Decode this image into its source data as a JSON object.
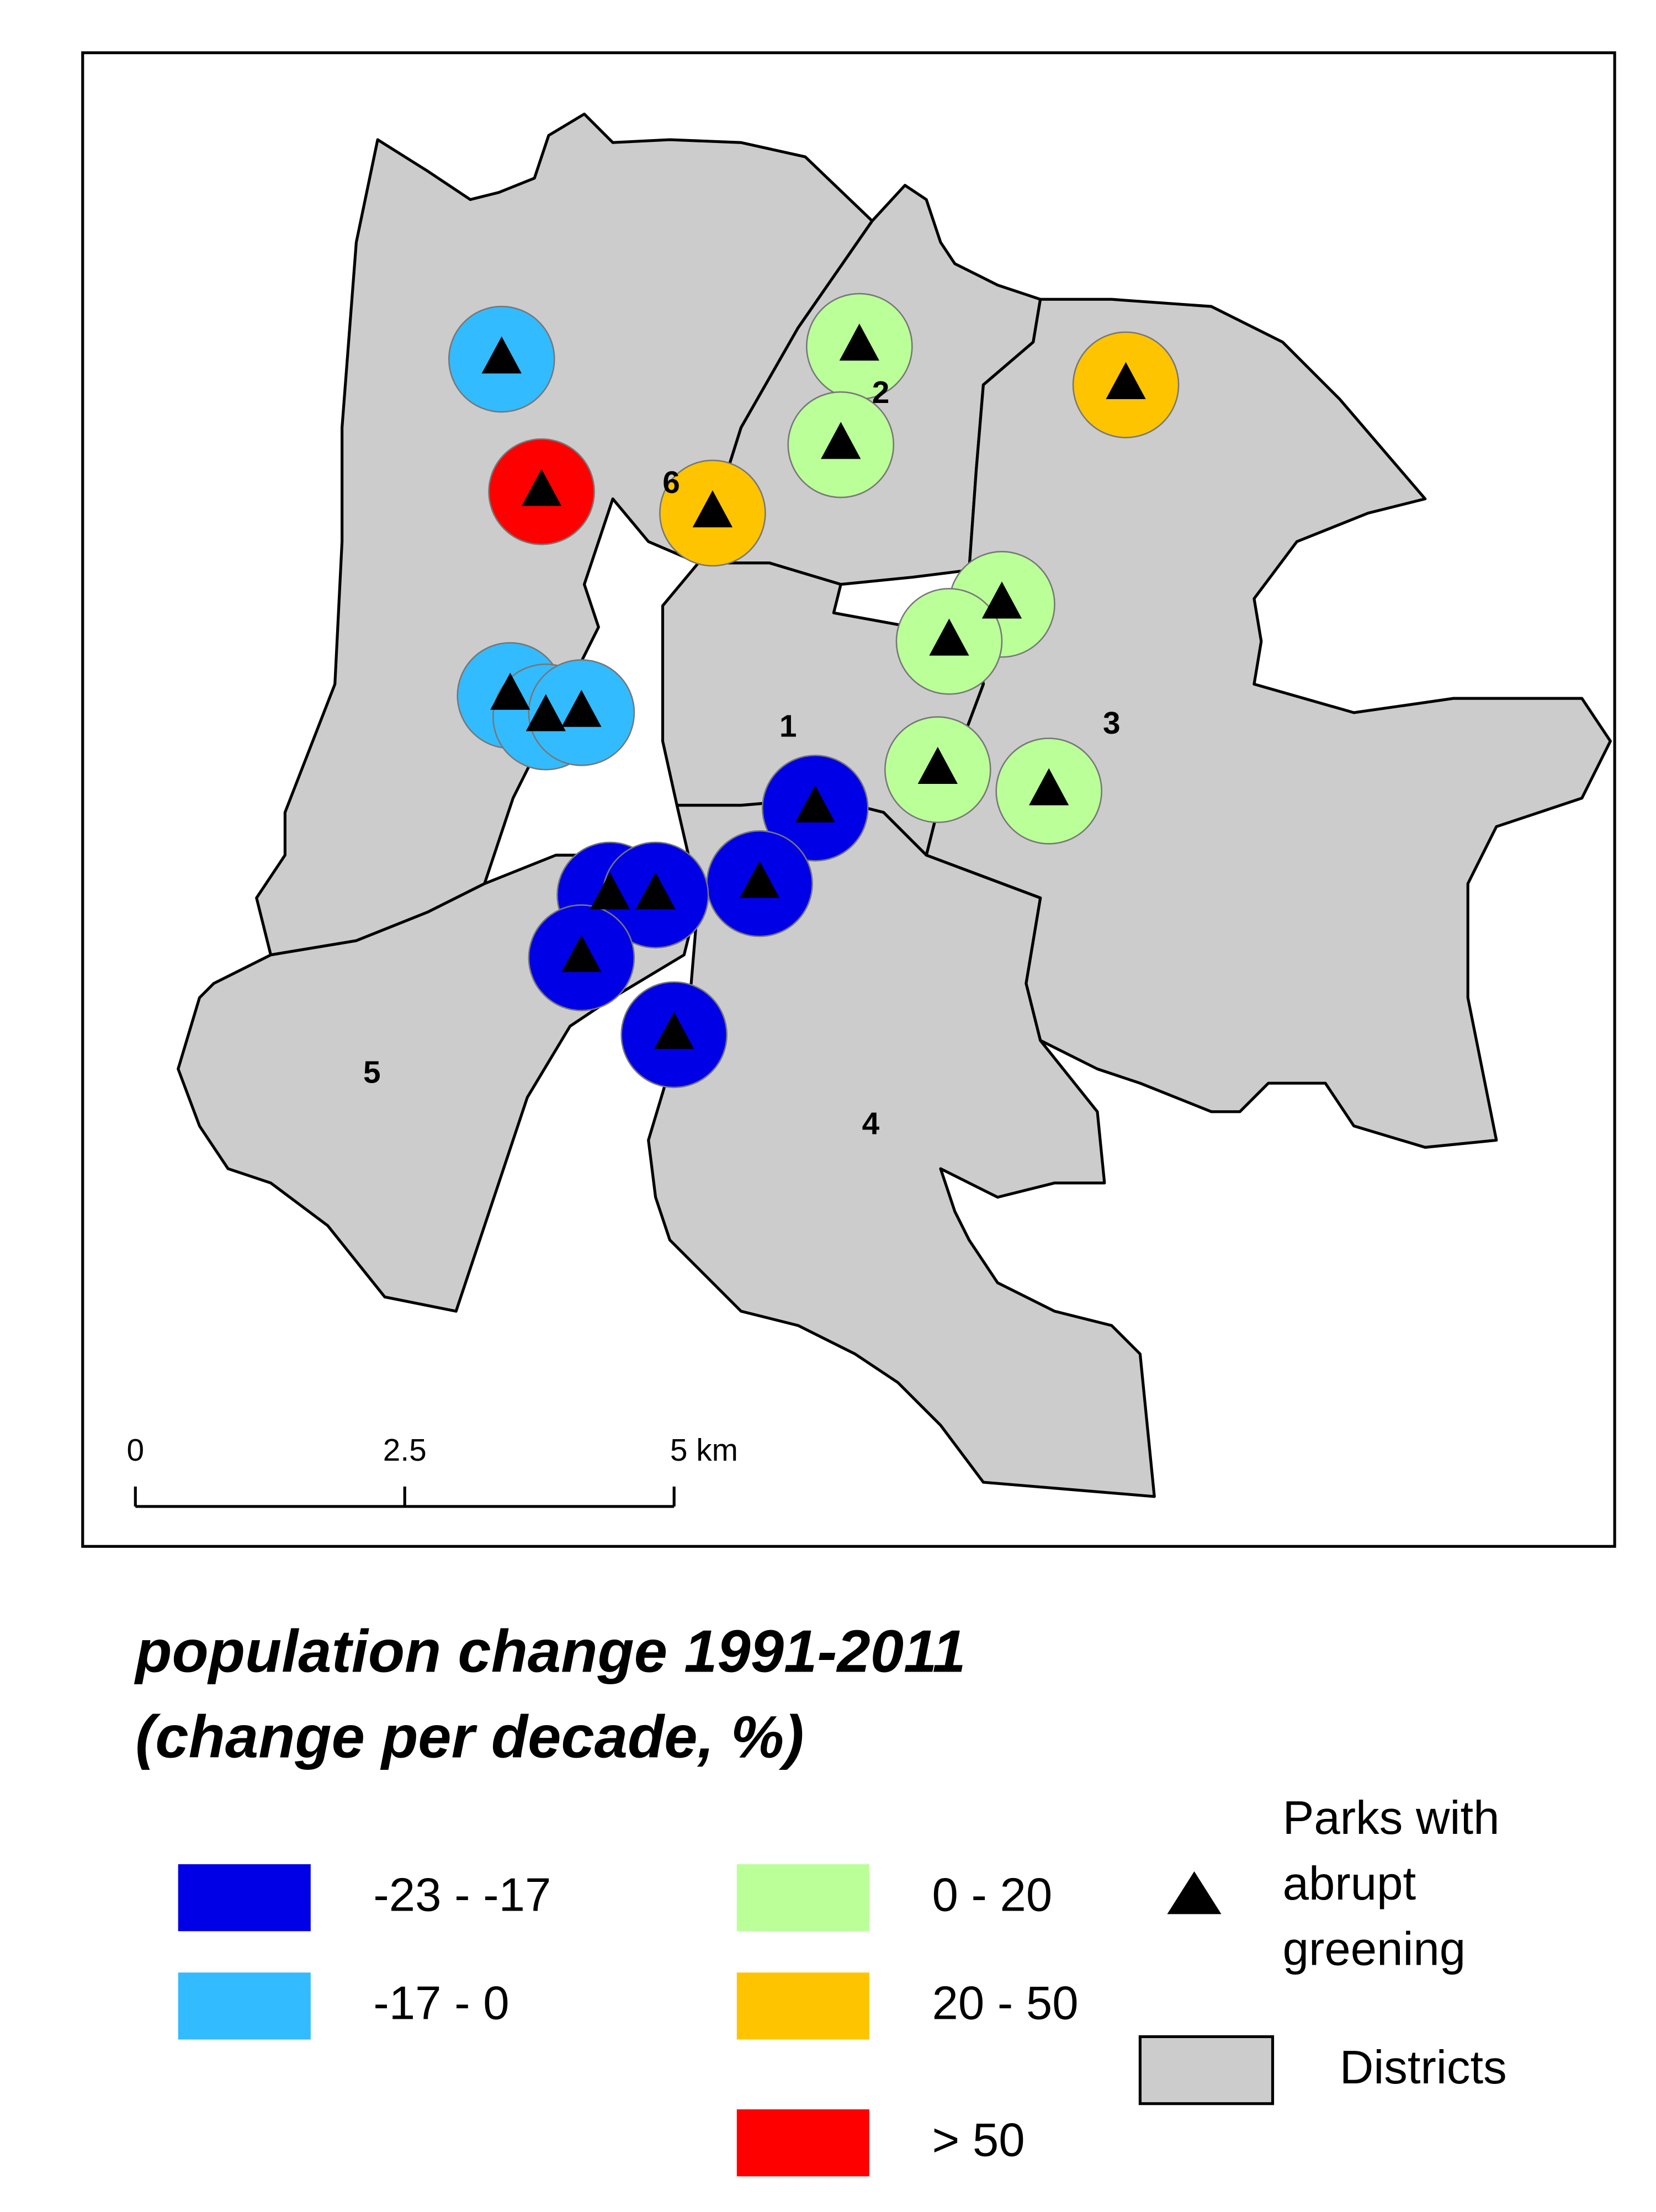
{
  "map": {
    "districts": [
      {
        "label": "1"
      },
      {
        "label": "2"
      },
      {
        "label": "3"
      },
      {
        "label": "4"
      },
      {
        "label": "5"
      },
      {
        "label": "6"
      }
    ],
    "scale_bar": {
      "ticks": [
        0,
        2.5,
        {
          "value": 5,
          "label": "5 km"
        }
      ]
    }
  },
  "legend": {
    "title": [
      "population change 1991-2011",
      "(change per decade, %)"
    ],
    "classes": [
      {
        "label": "-23 - -17",
        "color": "#0000e6"
      },
      {
        "label": "-17 - 0",
        "color": "#33bbff"
      },
      {
        "label": "0 - 20",
        "color": "#bbff99"
      },
      {
        "label": "20 - 50",
        "color": "#ffc400"
      },
      {
        "label": "> 50",
        "color": "#ff0000"
      }
    ],
    "parks_label": [
      "Parks with",
      "abrupt",
      "greening"
    ],
    "districts_label": "Districts"
  }
}
